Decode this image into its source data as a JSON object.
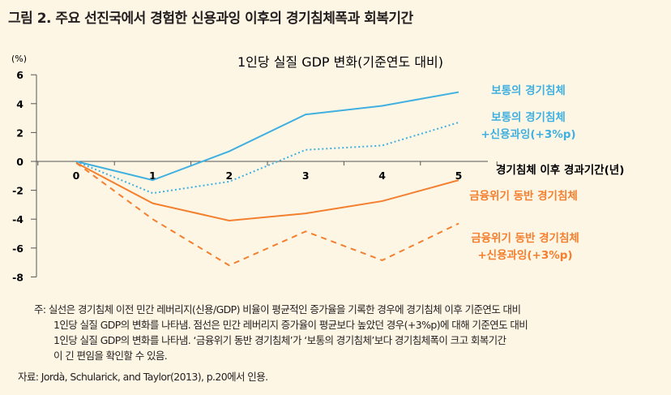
{
  "figure_title": "그림 2.  주요 선진국에서 경험한 신용과잉 이후의 경기침체폭과 회복기간",
  "chart_data": {
    "type": "line",
    "title": "1인당 실질 GDP 변화(기준연도 대비)",
    "ylabel": "(%)",
    "xlabel": "경기침체 이후 경과기간(년)",
    "x": [
      0,
      1,
      2,
      3,
      4,
      5
    ],
    "xticks": [
      "0",
      "1",
      "2",
      "3",
      "4",
      "5"
    ],
    "yticks": [
      "6",
      "4",
      "2",
      "0",
      "-2",
      "-4",
      "-6",
      "-8"
    ],
    "ylim": [
      -8,
      6
    ],
    "grid": false,
    "series": [
      {
        "name": "보통의 경기침체",
        "style": "solid",
        "color": "#3fb0e0",
        "values": [
          0,
          -1.3,
          0.7,
          3.25,
          3.85,
          4.8
        ]
      },
      {
        "name": "보통의 경기침체 +신용과잉(+3%p)",
        "label_lines": [
          "보통의 경기침체",
          "+신용과잉(+3%p)"
        ],
        "style": "dotted",
        "color": "#3fb0e0",
        "values": [
          0,
          -2.2,
          -1.4,
          0.8,
          1.1,
          2.7
        ]
      },
      {
        "name": "금융위기 동반 경기침체",
        "style": "solid",
        "color": "#f47f2e",
        "values": [
          -0.1,
          -2.9,
          -4.1,
          -3.6,
          -2.75,
          -1.3
        ]
      },
      {
        "name": "금융위기 동반 경기침체 +신용과잉(+3%p)",
        "label_lines": [
          "금융위기 동반 경기침체",
          "+신용과잉(+3%p)"
        ],
        "style": "dashed",
        "color": "#f47f2e",
        "values": [
          -0.1,
          -4.0,
          -7.2,
          -4.85,
          -6.85,
          -4.3
        ]
      }
    ]
  },
  "notes": [
    "주: 실선은 경기침체 이전 민간 레버리지(신용/GDP) 비율이 평균적인 증가율을 기록한 경우에 경기침체 이후 기준연도 대비",
    "1인당 실질 GDP의 변화를 나타냄. 점선은 민간 레버리지 증가율이 평균보다 높았던 경우(+3%p)에 대해 기준연도 대비",
    "1인당 실질 GDP의 변화를 나타냄. ‘금융위기 동반 경기침체’가 ‘보통의 경기침체’보다 경기침체폭이 크고 회복기간",
    "이 긴 편임을 확인할 수 있음."
  ],
  "source": "자료: Jordà, Schularick, and Taylor(2013), p.20에서 인용."
}
